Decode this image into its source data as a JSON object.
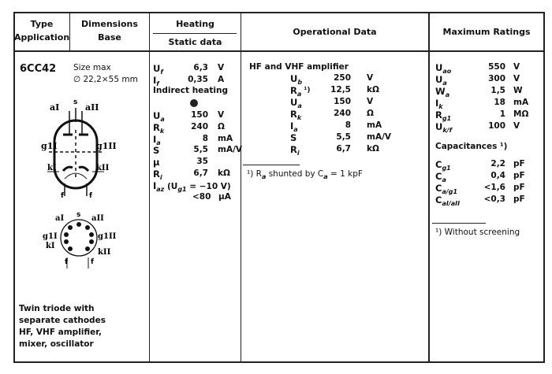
{
  "header": {
    "col1": [
      "Type",
      "Application"
    ],
    "col2": [
      "Dimensions",
      "Base"
    ],
    "col3_top": "Heating",
    "col3_bottom": "Static data",
    "col4": "Operational Data",
    "col5": "Maximum Ratings"
  },
  "type": {
    "name": "6CC42",
    "size_label": "Size max",
    "size_value": "∅ 22,2×55 mm",
    "description": [
      "Twin triode with",
      "separate cathodes",
      "HF, VHF amplifier,",
      "mixer, oscillator"
    ],
    "symbol_labels": {
      "aI": "aI",
      "s": "s",
      "aII": "aII",
      "g1I": "g1I",
      "g1II": "g1II",
      "kI": "kI",
      "kII": "kII",
      "f1": "f",
      "f2": "f"
    }
  },
  "heating": {
    "rows": [
      {
        "sym": "U",
        "sub": "f",
        "val": "6,3",
        "unit": "V"
      },
      {
        "sym": "I",
        "sub": "f",
        "val": "0,35",
        "unit": "A"
      }
    ],
    "note": "Indirect heating",
    "static": [
      {
        "sym": "U",
        "sub": "a",
        "val": "150",
        "unit": "V"
      },
      {
        "sym": "R",
        "sub": "k",
        "val": "240",
        "unit": "Ω"
      },
      {
        "sym": "I",
        "sub": "a",
        "val": "8",
        "unit": "mA"
      },
      {
        "sym": "S",
        "sub": "",
        "val": "5,5",
        "unit": "mA/V"
      },
      {
        "sym": "μ",
        "sub": "",
        "val": "35",
        "unit": ""
      },
      {
        "sym": "R",
        "sub": "i",
        "val": "6,7",
        "unit": "kΩ"
      }
    ],
    "iaz_label": "I",
    "iaz_sub": "az",
    "iaz_cond": "(U",
    "iaz_cond_sub": "g1",
    "iaz_cond_end": " = −10 V)",
    "iaz_val": "<80",
    "iaz_unit": "μA"
  },
  "operational": {
    "title": "HF and VHF amplifier",
    "rows": [
      {
        "sym": "U",
        "sub": "b",
        "sup": "",
        "val": "250",
        "unit": "V"
      },
      {
        "sym": "R",
        "sub": "a",
        "sup": " ¹)",
        "val": "12,5",
        "unit": "kΩ"
      },
      {
        "sym": "U",
        "sub": "a",
        "sup": "",
        "val": "150",
        "unit": "V"
      },
      {
        "sym": "R",
        "sub": "k",
        "sup": "",
        "val": "240",
        "unit": "Ω"
      },
      {
        "sym": "I",
        "sub": "a",
        "sup": "",
        "val": "8",
        "unit": "mA"
      },
      {
        "sym": "S",
        "sub": "",
        "sup": "",
        "val": "5,5",
        "unit": "mA/V"
      },
      {
        "sym": "R",
        "sub": "i",
        "sup": "",
        "val": "6,7",
        "unit": "kΩ"
      }
    ],
    "footnote": {
      "pre": "¹) R",
      "sub1": "a",
      "mid": " shunted by C",
      "sub2": "a",
      "post": " = 1 kpF"
    }
  },
  "max": {
    "rows": [
      {
        "sym": "U",
        "sub": "ao",
        "val": "550",
        "unit": "V"
      },
      {
        "sym": "U",
        "sub": "a",
        "val": "300",
        "unit": "V"
      },
      {
        "sym": "W",
        "sub": "a",
        "val": "1,5",
        "unit": "W"
      },
      {
        "sym": "I",
        "sub": "k",
        "val": "18",
        "unit": "mA"
      },
      {
        "sym": "R",
        "sub": "g1",
        "val": "1",
        "unit": "MΩ"
      },
      {
        "sym": "U",
        "sub": "k/f",
        "val": "100",
        "unit": "V"
      }
    ],
    "cap_title": "Capacitances ¹)",
    "caps": [
      {
        "sym": "C",
        "sub": "g1",
        "val": "2,2",
        "unit": "pF"
      },
      {
        "sym": "C",
        "sub": "a",
        "val": "0,4",
        "unit": "pF"
      },
      {
        "sym": "C",
        "sub": "a/g1",
        "val": "<1,6",
        "unit": "pF"
      },
      {
        "sym": "C",
        "sub": "aI/aII",
        "val": "<0,3",
        "unit": "pF"
      }
    ],
    "footnote": "¹) Without screening"
  }
}
